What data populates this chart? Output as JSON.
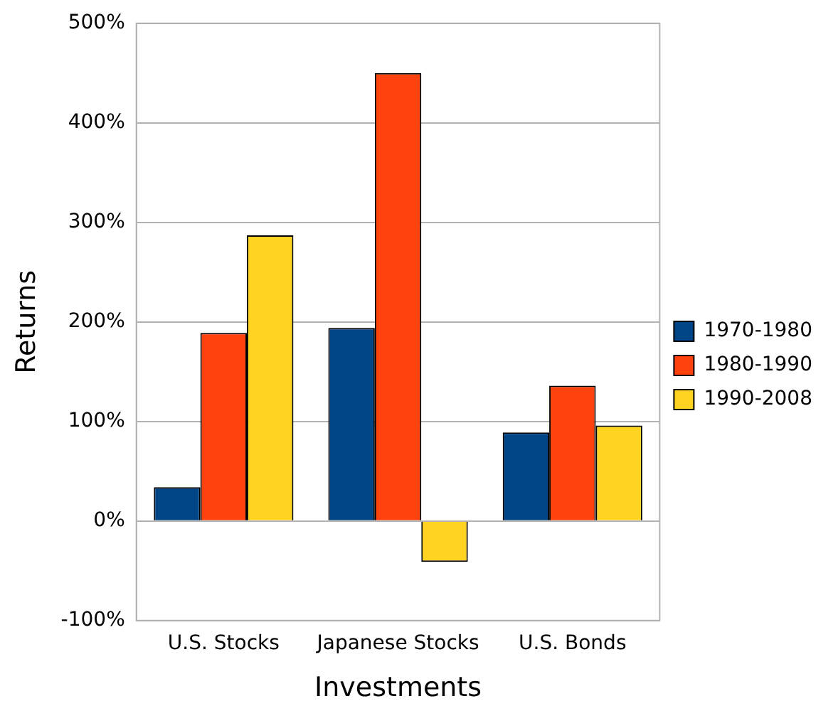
{
  "chart_data": {
    "type": "bar",
    "xlabel": "Investments",
    "ylabel": "Returns",
    "categories": [
      "U.S. Stocks",
      "Japanese Stocks",
      "U.S. Bonds"
    ],
    "series": [
      {
        "name": "1970-1980",
        "color": "#004586",
        "values": [
          34,
          194,
          89
        ]
      },
      {
        "name": "1980-1990",
        "color": "#ff420e",
        "values": [
          189,
          450,
          136
        ]
      },
      {
        "name": "1990-2008",
        "color": "#ffd320",
        "values": [
          287,
          -41,
          96
        ]
      }
    ],
    "ylim": [
      -100,
      500
    ],
    "yticks": [
      {
        "value": -100,
        "label": "-100%"
      },
      {
        "value": 0,
        "label": "0%"
      },
      {
        "value": 100,
        "label": "100%"
      },
      {
        "value": 200,
        "label": "200%"
      },
      {
        "value": 300,
        "label": "300%"
      },
      {
        "value": 400,
        "label": "400%"
      },
      {
        "value": 500,
        "label": "500%"
      }
    ],
    "grid": "y",
    "legend": "right"
  }
}
